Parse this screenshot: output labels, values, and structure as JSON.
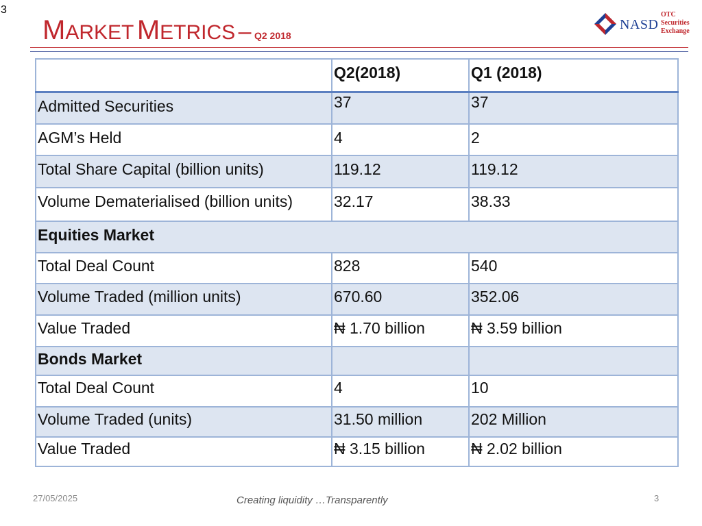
{
  "slide": {
    "corner_number": "3",
    "title": {
      "first_initial": "M",
      "first_rest": "ARKET",
      "second_initial": "M",
      "second_rest": "ETRICS",
      "dash": "–",
      "period": "Q2 2018"
    },
    "logo": {
      "wordmark": "NASD",
      "line1": "OTC",
      "line2": "Securities",
      "line3": "Exchange"
    }
  },
  "table": {
    "headers": [
      "",
      "Q2(2018)",
      "Q1 (2018)"
    ],
    "rows": [
      {
        "label": "Admitted Securities",
        "q2": "37",
        "q1": "37"
      },
      {
        "label": "AGM’s Held",
        "q2": "4",
        "q1": "2"
      },
      {
        "label": "Total Share Capital (billion units)",
        "q2": "119.12",
        "q1": "119.12"
      },
      {
        "label": "Volume Dematerialised (billion units)",
        "q2": "32.17",
        "q1": "38.33"
      },
      {
        "label": "Equities Market"
      },
      {
        "label": "Total Deal Count",
        "q2": "828",
        "q1": "540"
      },
      {
        "label": "Volume Traded (million units)",
        "q2": "670.60",
        "q1": "352.06"
      },
      {
        "label": "Value Traded",
        "q2": "₦ 1.70 billion",
        "q1": "₦ 3.59 billion"
      },
      {
        "label": "Bonds Market",
        "q2": "",
        "q1": ""
      },
      {
        "label": "Total Deal Count",
        "q2": "4",
        "q1": "10"
      },
      {
        "label": "Volume Traded (units)",
        "q2": "31.50 million",
        "q1": "202 Million"
      },
      {
        "label": "Value Traded",
        "q2": "₦ 3.15 billion",
        "q1": "₦ 2.02 billion"
      }
    ]
  },
  "footer": {
    "date": "27/05/2025",
    "tagline": "Creating liquidity …Transparently",
    "page": "3"
  },
  "colors": {
    "title_red": "#c0272d",
    "logo_blue": "#1d3f94",
    "row_shade": "#dde5f1",
    "cell_border": "#9db4d8"
  }
}
